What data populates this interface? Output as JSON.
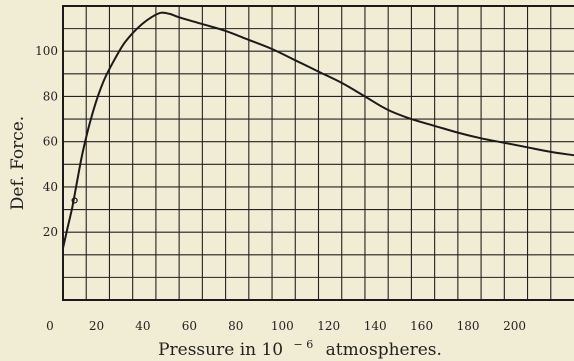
{
  "chart_data": {
    "type": "line",
    "title": "",
    "xlabel": {
      "prefix": "Pressure in 10",
      "superscript": "− 6",
      "suffix": "atmospheres."
    },
    "ylabel": "Def. Force.",
    "xlim": [
      0,
      220
    ],
    "ylim": [
      -10,
      120
    ],
    "x_ticks": [
      0,
      20,
      40,
      60,
      80,
      100,
      120,
      140,
      160,
      180,
      200
    ],
    "x_tick_labels": [
      "0",
      "20",
      "40",
      "60",
      "80",
      "100",
      "120",
      "140",
      "160",
      "180",
      "200"
    ],
    "y_ticks": [
      20,
      40,
      60,
      80,
      100
    ],
    "y_tick_labels": [
      "20",
      "40",
      "60",
      "80",
      "100"
    ],
    "grid": true,
    "grid_step": {
      "x": 10,
      "y": 10
    },
    "series": [
      {
        "x": [
          0,
          2,
          4,
          6,
          8,
          10,
          12,
          15,
          18,
          22,
          26,
          30,
          34,
          38,
          42,
          46,
          50,
          60,
          70,
          80,
          90,
          100,
          110,
          120,
          130,
          140,
          150,
          160,
          170,
          180,
          190,
          200,
          210,
          220
        ],
        "y": [
          13,
          22,
          31,
          42,
          53,
          62,
          70,
          80,
          88,
          96,
          103,
          108,
          112,
          115,
          117,
          116.5,
          115,
          112,
          109,
          105,
          101,
          96,
          91,
          86,
          80,
          74,
          70,
          67,
          64,
          61.5,
          59.5,
          57.5,
          55.5,
          54
        ],
        "color": "#1a1a1a"
      }
    ],
    "points": [
      {
        "x": 5,
        "y": 34,
        "marker": "open-circle"
      }
    ]
  }
}
